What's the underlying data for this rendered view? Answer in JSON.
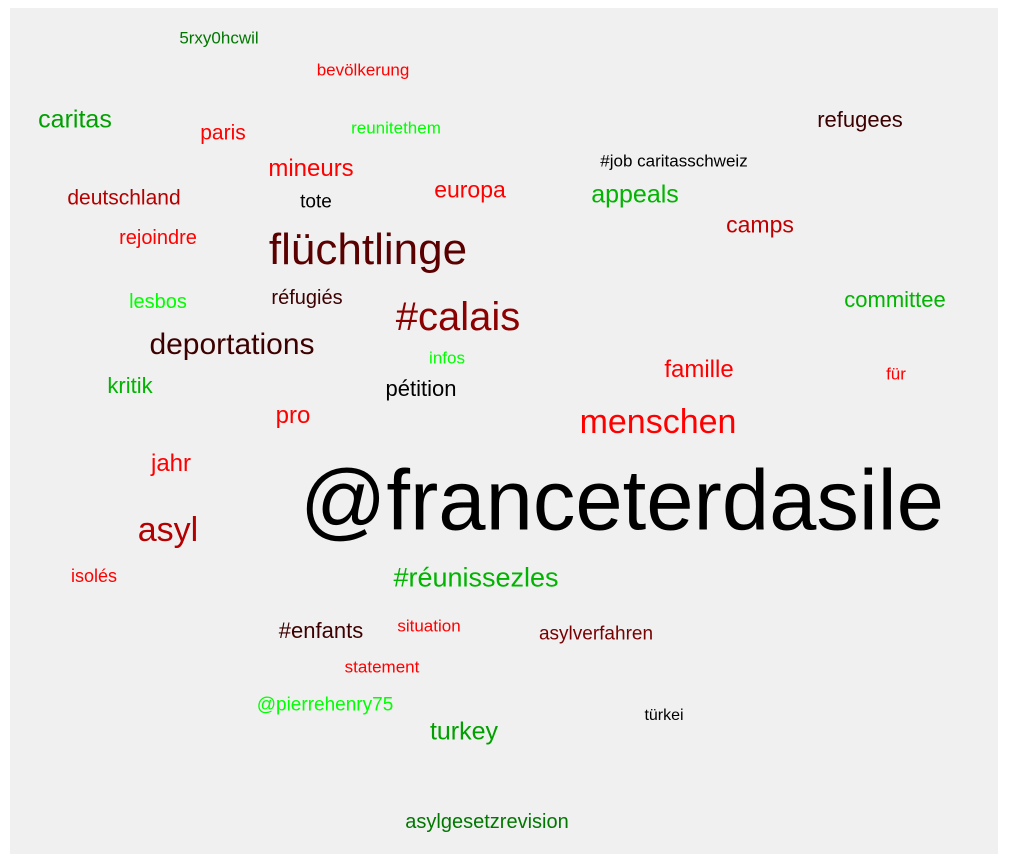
{
  "chart_data": {
    "type": "wordcloud",
    "words": [
      {
        "text": "@franceterdasile",
        "weight": 100,
        "color": "#000000"
      },
      {
        "text": "flüchtlinge",
        "weight": 52,
        "color": "#5a0000"
      },
      {
        "text": "#calais",
        "weight": 47,
        "color": "#8b0000"
      },
      {
        "text": "menschen",
        "weight": 40,
        "color": "#ff0000"
      },
      {
        "text": "asyl",
        "weight": 40,
        "color": "#b40000"
      },
      {
        "text": "deportations",
        "weight": 35,
        "color": "#3c0000"
      },
      {
        "text": "#réunissezles",
        "weight": 32,
        "color": "#00b400"
      },
      {
        "text": "appeals",
        "weight": 29,
        "color": "#00b400"
      },
      {
        "text": "caritas",
        "weight": 29,
        "color": "#00a000"
      },
      {
        "text": "turkey",
        "weight": 29,
        "color": "#00a000"
      },
      {
        "text": "mineurs",
        "weight": 28,
        "color": "#ff0000"
      },
      {
        "text": "famille",
        "weight": 28,
        "color": "#ff0000"
      },
      {
        "text": "jahr",
        "weight": 28,
        "color": "#ff0000"
      },
      {
        "text": "pro",
        "weight": 28,
        "color": "#ff0000"
      },
      {
        "text": "europa",
        "weight": 27,
        "color": "#ff0000"
      },
      {
        "text": "camps",
        "weight": 27,
        "color": "#c00000"
      },
      {
        "text": "refugees",
        "weight": 26,
        "color": "#3c0000"
      },
      {
        "text": "committee",
        "weight": 26,
        "color": "#00b400"
      },
      {
        "text": "kritik",
        "weight": 26,
        "color": "#00b400"
      },
      {
        "text": "pétition",
        "weight": 26,
        "color": "#000000"
      },
      {
        "text": "#enfants",
        "weight": 26,
        "color": "#3c0000"
      },
      {
        "text": "deutschland",
        "weight": 25,
        "color": "#b40000"
      },
      {
        "text": "paris",
        "weight": 25,
        "color": "#ff0000"
      },
      {
        "text": "lesbos",
        "weight": 24,
        "color": "#00ff00"
      },
      {
        "text": "réfugiés",
        "weight": 23,
        "color": "#3c0000"
      },
      {
        "text": "rejoindre",
        "weight": 23,
        "color": "#ff0000"
      },
      {
        "text": "asylgesetzrevision",
        "weight": 23,
        "color": "#007800"
      },
      {
        "text": "asylverfahren",
        "weight": 22,
        "color": "#780000"
      },
      {
        "text": "@pierrehenry75",
        "weight": 22,
        "color": "#00ff00"
      },
      {
        "text": "tote",
        "weight": 22,
        "color": "#000000"
      },
      {
        "text": "isolés",
        "weight": 21,
        "color": "#ff0000"
      },
      {
        "text": "#job caritasschweiz",
        "weight": 20,
        "color": "#000000"
      },
      {
        "text": "statement",
        "weight": 20,
        "color": "#ff0000"
      },
      {
        "text": "situation",
        "weight": 20,
        "color": "#ff0000"
      },
      {
        "text": "reunitethem",
        "weight": 20,
        "color": "#00ff00"
      },
      {
        "text": "bevölkerung",
        "weight": 20,
        "color": "#ff0000"
      },
      {
        "text": "5rxy0hcwil",
        "weight": 20,
        "color": "#007800"
      },
      {
        "text": "infos",
        "weight": 20,
        "color": "#00ff00"
      },
      {
        "text": "für",
        "weight": 20,
        "color": "#ff0000"
      },
      {
        "text": "türkei",
        "weight": 19,
        "color": "#000000"
      }
    ]
  }
}
